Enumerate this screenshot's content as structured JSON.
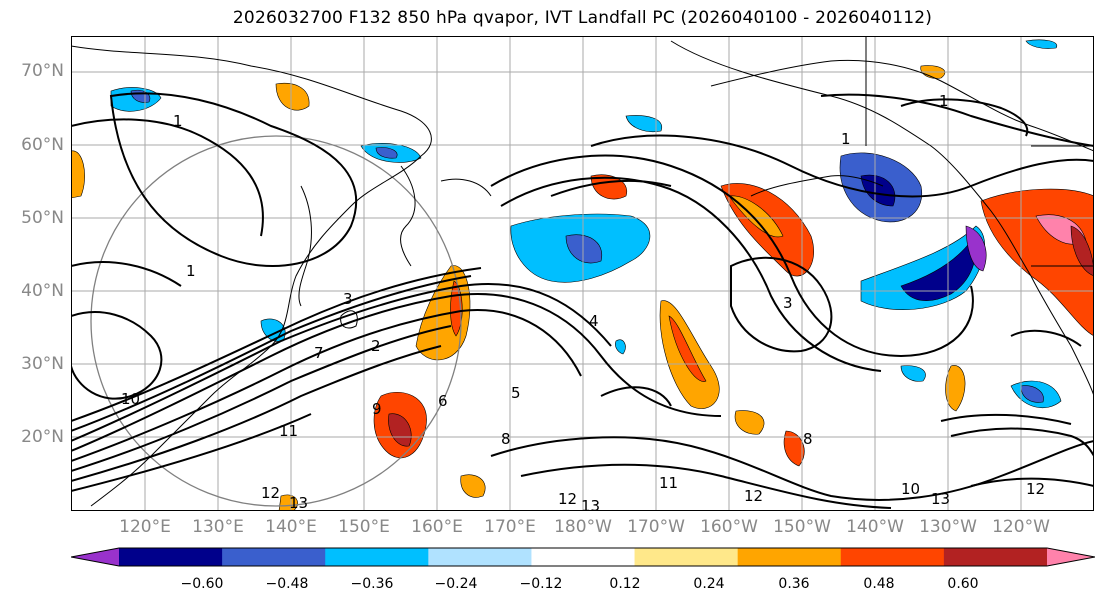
{
  "title": "2026032700 F132 850 hPa qvapor, IVT Landfall PC (2026040100 - 2026040112)",
  "map": {
    "lat_labels": [
      "70°N",
      "60°N",
      "50°N",
      "40°N",
      "30°N",
      "20°N"
    ],
    "lon_labels": [
      "120°E",
      "130°E",
      "140°E",
      "150°E",
      "160°E",
      "170°E",
      "180°W",
      "170°W",
      "160°W",
      "150°W",
      "140°W",
      "130°W",
      "120°W"
    ],
    "contour_labels": [
      "1",
      "1",
      "1",
      "1",
      "2",
      "3",
      "3",
      "4",
      "5",
      "6",
      "7",
      "8",
      "8",
      "9",
      "10",
      "11",
      "11",
      "12",
      "12",
      "12",
      "13",
      "13",
      "13",
      "10",
      "12"
    ],
    "colors": {
      "coast": "#000000",
      "grid": "#aaaaaa",
      "circle": "#808080",
      "contour": "#000000"
    }
  },
  "colorbar": {
    "colors": [
      "#9932cc",
      "#00008b",
      "#3a5fcd",
      "#00bfff",
      "#b0e2ff",
      "#ffffff",
      "#ffe88a",
      "#ffa500",
      "#ff4500",
      "#b22222",
      "#ff82ab"
    ],
    "tick_labels": [
      "−0.60",
      "−0.48",
      "−0.36",
      "−0.24",
      "−0.12",
      "0.12",
      "0.24",
      "0.36",
      "0.48",
      "0.60"
    ]
  }
}
